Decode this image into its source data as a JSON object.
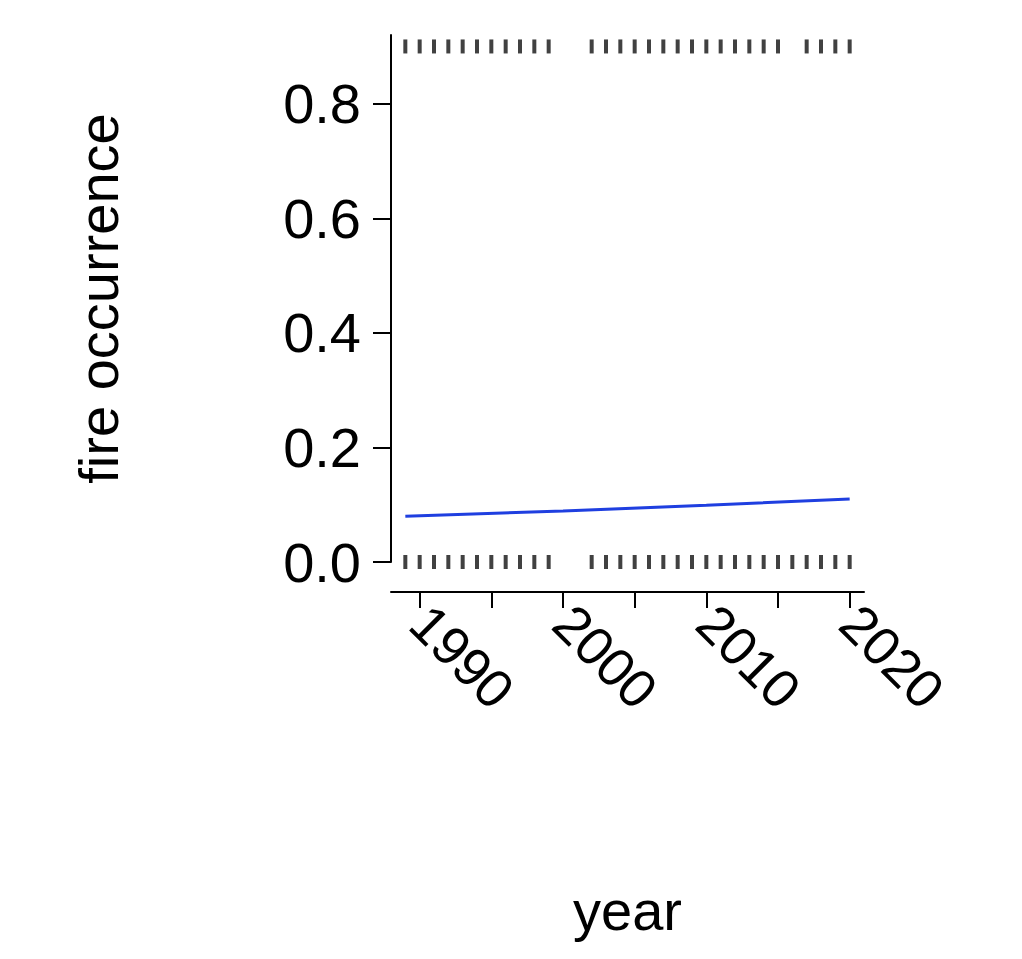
{
  "chart_data": {
    "type": "line",
    "x_label": "year",
    "y_label": "fire occurrence",
    "xlim": [
      1988,
      2021
    ],
    "ylim": [
      0,
      0.92
    ],
    "xticks": [
      1990,
      2000,
      2010,
      2020
    ],
    "yticks": [
      {
        "value": 0,
        "label": "0.0"
      },
      0.2,
      0.4,
      0.6,
      0.8
    ],
    "grid": false,
    "series": [
      {
        "type": "line",
        "color": "#1f3fe0",
        "x": [
          1989,
          2000,
          2010,
          2020
        ],
        "values": [
          0.08,
          0.089,
          0.099,
          0.11
        ]
      },
      {
        "type": "scatter",
        "marker": "rug",
        "color": "#111111",
        "x": [
          1989,
          1990,
          1991,
          1992,
          1993,
          1994,
          1995,
          1996,
          1997,
          1998,
          1999,
          2002,
          2003,
          2004,
          2005,
          2006,
          2007,
          2008,
          2009,
          2010,
          2011,
          2012,
          2013,
          2014,
          2015,
          2017,
          2018,
          2019,
          2020
        ],
        "values": [
          0.9,
          0.9,
          0.9,
          0.9,
          0.9,
          0.9,
          0.9,
          0.9,
          0.9,
          0.9,
          0.9,
          0.9,
          0.9,
          0.9,
          0.9,
          0.9,
          0.9,
          0.9,
          0.9,
          0.9,
          0.9,
          0.9,
          0.9,
          0.9,
          0.9,
          0.9,
          0.9,
          0.9,
          0.9
        ]
      },
      {
        "type": "scatter",
        "marker": "rug",
        "color": "#111111",
        "x": [
          1989,
          1990,
          1991,
          1992,
          1993,
          1994,
          1995,
          1996,
          1997,
          1998,
          1999,
          2002,
          2003,
          2004,
          2005,
          2006,
          2007,
          2008,
          2009,
          2010,
          2011,
          2012,
          2013,
          2014,
          2015,
          2016,
          2017,
          2018,
          2019,
          2020
        ],
        "values": [
          0,
          0,
          0,
          0,
          0,
          0,
          0,
          0,
          0,
          0,
          0,
          0,
          0,
          0,
          0,
          0,
          0,
          0,
          0,
          0,
          0,
          0,
          0,
          0,
          0,
          0,
          0,
          0,
          0,
          0
        ]
      }
    ]
  }
}
